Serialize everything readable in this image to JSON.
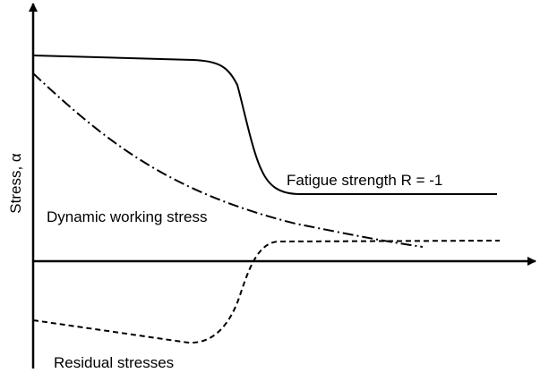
{
  "axes": {
    "y_label": "Stress, α"
  },
  "curves": {
    "fatigue": {
      "label": "Fatigue strength R = -1",
      "style": "solid"
    },
    "working": {
      "label": "Dynamic working stress",
      "style": "dash-dot"
    },
    "residual": {
      "label": "Residual stresses",
      "style": "dashed"
    }
  },
  "colors": {
    "line": "#000000",
    "background": "#ffffff"
  }
}
